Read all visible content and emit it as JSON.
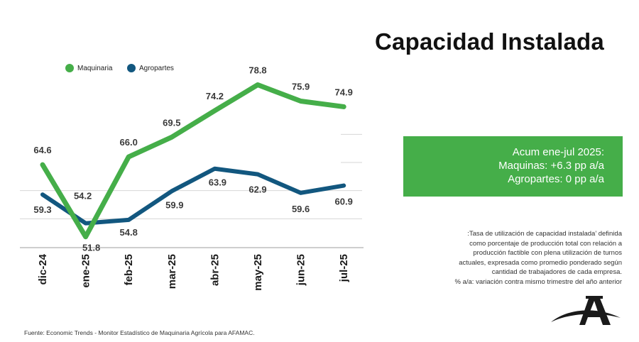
{
  "title": "Capacidad Instalada",
  "summary": {
    "line1": "Acum ene-jul 2025:",
    "line2": "Maquinas: +6.3 pp a/a",
    "line3": "Agropartes: 0 pp a/a"
  },
  "note": {
    "line1": ":Tasa de utilización de capacidad instalada’ definida",
    "line2": "como porcentaje de producción total con relación a",
    "line3": "producción factible con plena utilización de turnos",
    "line4": "actuales, expresada como promedio ponderado según",
    "line5": "cantidad de trabajadores de cada empresa.",
    "line6": "% a/a: variación contra mismo trimestre del año anterior"
  },
  "source": "Fuente: Economic Trends - Monitor Estadístico de Maquinaria Agrícola para AFAMAC.",
  "colors": {
    "maquinaria": "#45ae49",
    "agropartes": "#12577f",
    "box": "#45ae49",
    "grid": "#d6d6d6"
  },
  "chart_data": {
    "type": "line",
    "title": "",
    "xlabel": "",
    "ylabel": "",
    "ylim": [
      50,
      80
    ],
    "legend_position": "top-left",
    "categories": [
      "dic-24",
      "ene-25",
      "feb-25",
      "mar-25",
      "abr-25",
      "may-25",
      "jun-25",
      "jul-25"
    ],
    "series": [
      {
        "name": "Maquinaria",
        "values": [
          64.6,
          51.8,
          66.0,
          69.5,
          74.2,
          78.8,
          75.9,
          74.9
        ],
        "labels": [
          "64.6",
          "51.8",
          "66.0",
          "69.5",
          "74.2",
          "78.8",
          "75.9",
          "74.9"
        ]
      },
      {
        "name": "Agropartes",
        "values": [
          59.3,
          54.2,
          54.8,
          59.9,
          63.9,
          62.9,
          59.6,
          60.9
        ],
        "labels": [
          "59.3",
          "54.2",
          "54.8",
          "59.9",
          "63.9",
          "62.9",
          "59.6",
          "60.9"
        ]
      }
    ]
  }
}
